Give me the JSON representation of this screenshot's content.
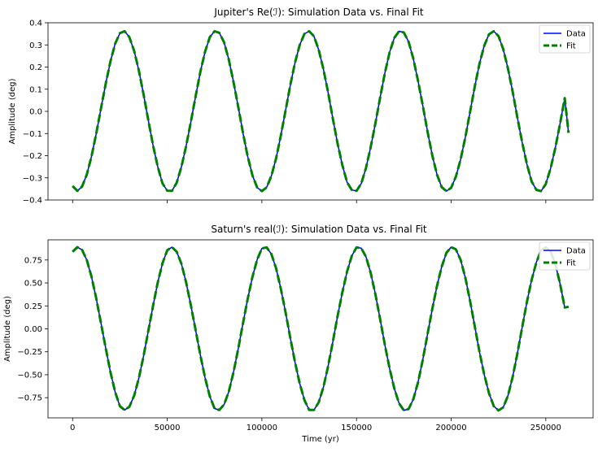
{
  "chart_data": [
    {
      "type": "line",
      "title": "Jupiter's Re(ℐ): Simulation Data vs. Final Fit",
      "xlabel": "",
      "ylabel": "Amplitude (deg)",
      "xlim": [
        -13000,
        275000
      ],
      "ylim": [
        -0.4,
        0.4
      ],
      "yticks": [
        -0.4,
        -0.3,
        -0.2,
        -0.1,
        0.0,
        0.1,
        0.2,
        0.3,
        0.4
      ],
      "ytick_labels": [
        "−0.4",
        "−0.3",
        "−0.2",
        "−0.1",
        "0.0",
        "0.1",
        "0.2",
        "0.3",
        "0.4"
      ],
      "xticks": [
        0,
        50000,
        100000,
        150000,
        200000,
        250000
      ],
      "xtick_labels_shown": false,
      "legend_location": "upper right",
      "series": [
        {
          "name": "Data",
          "style": "solid",
          "color": "#0000ff",
          "x": [
            0,
            2500,
            5000,
            7500,
            10000,
            12500,
            15000,
            17500,
            20000,
            22500,
            25000,
            27500,
            30000,
            32500,
            35000,
            37500,
            40000,
            42500,
            45000,
            47500,
            50000,
            52500,
            55000,
            57500,
            60000,
            62500,
            65000,
            67500,
            70000,
            72500,
            75000,
            77500,
            80000,
            82500,
            85000,
            87500,
            90000,
            92500,
            95000,
            97500,
            100000,
            102500,
            105000,
            107500,
            110000,
            112500,
            115000,
            117500,
            120000,
            122500,
            125000,
            127500,
            130000,
            132500,
            135000,
            137500,
            140000,
            142500,
            145000,
            147500,
            150000,
            152500,
            155000,
            157500,
            160000,
            162500,
            165000,
            167500,
            170000,
            172500,
            175000,
            177500,
            180000,
            182500,
            185000,
            187500,
            190000,
            192500,
            195000,
            197500,
            200000,
            202500,
            205000,
            207500,
            210000,
            212500,
            215000,
            217500,
            220000,
            222500,
            225000,
            227500,
            230000,
            232500,
            235000,
            237500,
            240000,
            242500,
            245000,
            247500,
            250000,
            252500,
            255000,
            257500,
            260000,
            262000
          ],
          "y": [
            -0.337,
            -0.359,
            -0.339,
            -0.285,
            -0.203,
            -0.1,
            0.013,
            0.126,
            0.226,
            0.306,
            0.353,
            0.362,
            0.335,
            0.273,
            0.184,
            0.076,
            -0.04,
            -0.153,
            -0.25,
            -0.325,
            -0.358,
            -0.359,
            -0.322,
            -0.25,
            -0.156,
            -0.047,
            0.069,
            0.179,
            0.27,
            0.335,
            0.362,
            0.355,
            0.312,
            0.234,
            0.133,
            0.021,
            -0.096,
            -0.203,
            -0.289,
            -0.344,
            -0.36,
            -0.343,
            -0.292,
            -0.213,
            -0.111,
            0.004,
            0.118,
            0.22,
            0.3,
            0.35,
            0.362,
            0.339,
            0.278,
            0.191,
            0.085,
            -0.033,
            -0.145,
            -0.243,
            -0.32,
            -0.355,
            -0.359,
            -0.326,
            -0.256,
            -0.162,
            -0.052,
            0.064,
            0.174,
            0.267,
            0.332,
            0.362,
            0.356,
            0.314,
            0.238,
            0.138,
            0.027,
            -0.09,
            -0.198,
            -0.285,
            -0.342,
            -0.36,
            -0.345,
            -0.295,
            -0.216,
            -0.116,
            -0.002,
            0.113,
            0.216,
            0.297,
            0.348,
            0.362,
            0.34,
            0.281,
            0.194,
            0.089,
            -0.028,
            -0.14,
            -0.238,
            -0.316,
            -0.354,
            -0.36,
            -0.328,
            -0.258,
            -0.166,
            -0.057,
            0.06,
            -0.097
          ]
        },
        {
          "name": "Fit",
          "style": "dashed",
          "color": "#008000",
          "x": [
            0,
            2500,
            5000,
            7500,
            10000,
            12500,
            15000,
            17500,
            20000,
            22500,
            25000,
            27500,
            30000,
            32500,
            35000,
            37500,
            40000,
            42500,
            45000,
            47500,
            50000,
            52500,
            55000,
            57500,
            60000,
            62500,
            65000,
            67500,
            70000,
            72500,
            75000,
            77500,
            80000,
            82500,
            85000,
            87500,
            90000,
            92500,
            95000,
            97500,
            100000,
            102500,
            105000,
            107500,
            110000,
            112500,
            115000,
            117500,
            120000,
            122500,
            125000,
            127500,
            130000,
            132500,
            135000,
            137500,
            140000,
            142500,
            145000,
            147500,
            150000,
            152500,
            155000,
            157500,
            160000,
            162500,
            165000,
            167500,
            170000,
            172500,
            175000,
            177500,
            180000,
            182500,
            185000,
            187500,
            190000,
            192500,
            195000,
            197500,
            200000,
            202500,
            205000,
            207500,
            210000,
            212500,
            215000,
            217500,
            220000,
            222500,
            225000,
            227500,
            230000,
            232500,
            235000,
            237500,
            240000,
            242500,
            245000,
            247500,
            250000,
            252500,
            255000,
            257500,
            260000,
            262000
          ],
          "y": [
            -0.337,
            -0.359,
            -0.339,
            -0.285,
            -0.203,
            -0.1,
            0.013,
            0.126,
            0.226,
            0.306,
            0.353,
            0.362,
            0.335,
            0.273,
            0.184,
            0.076,
            -0.04,
            -0.153,
            -0.25,
            -0.325,
            -0.358,
            -0.359,
            -0.322,
            -0.25,
            -0.156,
            -0.047,
            0.069,
            0.179,
            0.27,
            0.335,
            0.362,
            0.355,
            0.312,
            0.234,
            0.133,
            0.021,
            -0.096,
            -0.203,
            -0.289,
            -0.344,
            -0.36,
            -0.343,
            -0.292,
            -0.213,
            -0.111,
            0.004,
            0.118,
            0.22,
            0.3,
            0.35,
            0.362,
            0.339,
            0.278,
            0.191,
            0.085,
            -0.033,
            -0.145,
            -0.243,
            -0.32,
            -0.355,
            -0.359,
            -0.326,
            -0.256,
            -0.162,
            -0.052,
            0.064,
            0.174,
            0.267,
            0.332,
            0.362,
            0.356,
            0.314,
            0.238,
            0.138,
            0.027,
            -0.09,
            -0.198,
            -0.285,
            -0.342,
            -0.36,
            -0.345,
            -0.295,
            -0.216,
            -0.116,
            -0.002,
            0.113,
            0.216,
            0.297,
            0.348,
            0.362,
            0.34,
            0.281,
            0.194,
            0.089,
            -0.028,
            -0.14,
            -0.238,
            -0.316,
            -0.354,
            -0.36,
            -0.328,
            -0.258,
            -0.166,
            -0.057,
            0.06,
            -0.097
          ]
        }
      ]
    },
    {
      "type": "line",
      "title": "Saturn's real(ℐ): Simulation Data vs. Final Fit",
      "xlabel": "Time (yr)",
      "ylabel": "Amplitude (deg)",
      "xlim": [
        -13000,
        275000
      ],
      "ylim": [
        -0.97,
        0.97
      ],
      "yticks": [
        -0.75,
        -0.5,
        -0.25,
        0.0,
        0.25,
        0.5,
        0.75
      ],
      "ytick_labels": [
        "−0.75",
        "−0.50",
        "−0.25",
        "0.00",
        "0.25",
        "0.50",
        "0.75"
      ],
      "xticks": [
        0,
        50000,
        100000,
        150000,
        200000,
        250000
      ],
      "xtick_labels": [
        "0",
        "50000",
        "100000",
        "150000",
        "200000",
        "250000"
      ],
      "legend_location": "upper right",
      "series": [
        {
          "name": "Data",
          "style": "solid",
          "color": "#0000ff",
          "x": [
            0,
            2500,
            5000,
            7500,
            10000,
            12500,
            15000,
            17500,
            20000,
            22500,
            25000,
            27500,
            30000,
            32500,
            35000,
            37500,
            40000,
            42500,
            45000,
            47500,
            50000,
            52500,
            55000,
            57500,
            60000,
            62500,
            65000,
            67500,
            70000,
            72500,
            75000,
            77500,
            80000,
            82500,
            85000,
            87500,
            90000,
            92500,
            95000,
            97500,
            100000,
            102500,
            105000,
            107500,
            110000,
            112500,
            115000,
            117500,
            120000,
            122500,
            125000,
            127500,
            130000,
            132500,
            135000,
            137500,
            140000,
            142500,
            145000,
            147500,
            150000,
            152500,
            155000,
            157500,
            160000,
            162500,
            165000,
            167500,
            170000,
            172500,
            175000,
            177500,
            180000,
            182500,
            185000,
            187500,
            190000,
            192500,
            195000,
            197500,
            200000,
            202500,
            205000,
            207500,
            210000,
            212500,
            215000,
            217500,
            220000,
            222500,
            225000,
            227500,
            230000,
            232500,
            235000,
            237500,
            240000,
            242500,
            245000,
            247500,
            250000,
            252500,
            255000,
            257500,
            260000,
            262000
          ],
          "y": [
            0.84,
            0.89,
            0.86,
            0.749,
            0.567,
            0.331,
            0.063,
            -0.213,
            -0.474,
            -0.69,
            -0.843,
            -0.885,
            -0.849,
            -0.728,
            -0.536,
            -0.295,
            -0.022,
            0.25,
            0.505,
            0.714,
            0.857,
            0.89,
            0.84,
            0.709,
            0.505,
            0.255,
            -0.017,
            -0.288,
            -0.536,
            -0.736,
            -0.868,
            -0.885,
            -0.826,
            -0.685,
            -0.474,
            -0.218,
            0.058,
            0.325,
            0.566,
            0.756,
            0.876,
            0.888,
            0.816,
            0.662,
            0.44,
            0.18,
            -0.098,
            -0.363,
            -0.596,
            -0.777,
            -0.884,
            -0.884,
            -0.802,
            -0.637,
            -0.407,
            -0.141,
            0.138,
            0.398,
            0.624,
            0.795,
            0.888,
            0.879,
            0.786,
            0.611,
            0.373,
            0.102,
            -0.177,
            -0.433,
            -0.651,
            -0.812,
            -0.889,
            -0.873,
            -0.768,
            -0.583,
            -0.339,
            -0.063,
            0.215,
            0.467,
            0.677,
            0.828,
            0.89,
            0.866,
            0.751,
            0.555,
            0.303,
            0.024,
            -0.255,
            -0.5,
            -0.701,
            -0.842,
            -0.889,
            -0.856,
            -0.729,
            -0.525,
            -0.268,
            0.016,
            0.291,
            0.532,
            0.724,
            0.855,
            0.888,
            0.845,
            0.708,
            0.494,
            0.232,
            0.24
          ]
        },
        {
          "name": "Fit",
          "style": "dashed",
          "color": "#008000",
          "x": [
            0,
            2500,
            5000,
            7500,
            10000,
            12500,
            15000,
            17500,
            20000,
            22500,
            25000,
            27500,
            30000,
            32500,
            35000,
            37500,
            40000,
            42500,
            45000,
            47500,
            50000,
            52500,
            55000,
            57500,
            60000,
            62500,
            65000,
            67500,
            70000,
            72500,
            75000,
            77500,
            80000,
            82500,
            85000,
            87500,
            90000,
            92500,
            95000,
            97500,
            100000,
            102500,
            105000,
            107500,
            110000,
            112500,
            115000,
            117500,
            120000,
            122500,
            125000,
            127500,
            130000,
            132500,
            135000,
            137500,
            140000,
            142500,
            145000,
            147500,
            150000,
            152500,
            155000,
            157500,
            160000,
            162500,
            165000,
            167500,
            170000,
            172500,
            175000,
            177500,
            180000,
            182500,
            185000,
            187500,
            190000,
            192500,
            195000,
            197500,
            200000,
            202500,
            205000,
            207500,
            210000,
            212500,
            215000,
            217500,
            220000,
            222500,
            225000,
            227500,
            230000,
            232500,
            235000,
            237500,
            240000,
            242500,
            245000,
            247500,
            250000,
            252500,
            255000,
            257500,
            260000,
            262000
          ],
          "y": [
            0.84,
            0.89,
            0.86,
            0.749,
            0.567,
            0.331,
            0.063,
            -0.213,
            -0.474,
            -0.69,
            -0.843,
            -0.885,
            -0.849,
            -0.728,
            -0.536,
            -0.295,
            -0.022,
            0.25,
            0.505,
            0.714,
            0.857,
            0.89,
            0.84,
            0.709,
            0.505,
            0.255,
            -0.017,
            -0.288,
            -0.536,
            -0.736,
            -0.868,
            -0.885,
            -0.826,
            -0.685,
            -0.474,
            -0.218,
            0.058,
            0.325,
            0.566,
            0.756,
            0.876,
            0.888,
            0.816,
            0.662,
            0.44,
            0.18,
            -0.098,
            -0.363,
            -0.596,
            -0.777,
            -0.884,
            -0.884,
            -0.802,
            -0.637,
            -0.407,
            -0.141,
            0.138,
            0.398,
            0.624,
            0.795,
            0.888,
            0.879,
            0.786,
            0.611,
            0.373,
            0.102,
            -0.177,
            -0.433,
            -0.651,
            -0.812,
            -0.889,
            -0.873,
            -0.768,
            -0.583,
            -0.339,
            -0.063,
            0.215,
            0.467,
            0.677,
            0.828,
            0.89,
            0.866,
            0.751,
            0.555,
            0.303,
            0.024,
            -0.255,
            -0.5,
            -0.701,
            -0.842,
            -0.889,
            -0.856,
            -0.729,
            -0.525,
            -0.268,
            0.016,
            0.291,
            0.532,
            0.724,
            0.855,
            0.888,
            0.845,
            0.708,
            0.494,
            0.232,
            0.24
          ]
        }
      ]
    }
  ]
}
